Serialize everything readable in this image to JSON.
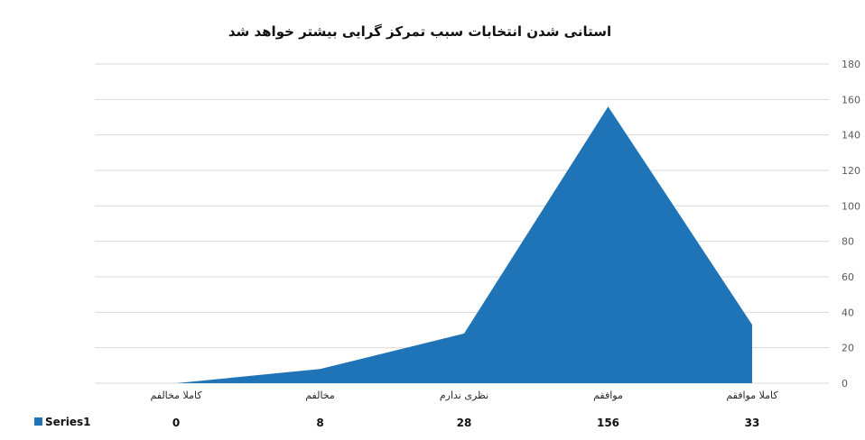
{
  "chart_data": {
    "type": "area",
    "title": "استانی شدن انتخابات سبب تمرکز گرایی بیشتر خواهد شد",
    "categories": [
      "کاملا مخالفم",
      "مخالفم",
      "نظری ندارم",
      "موافقم",
      "کاملا موافقم"
    ],
    "series": [
      {
        "name": "Series1",
        "values": [
          0,
          8,
          28,
          156,
          33
        ],
        "color": "#1f73b7"
      }
    ],
    "ylim": [
      0,
      180
    ],
    "yticks": [
      0,
      20,
      40,
      60,
      80,
      100,
      120,
      140,
      160,
      180
    ],
    "y_axis_position": "right",
    "grid": true,
    "data_table": true,
    "colors": {
      "series": "#1f73b7",
      "grid": "#d9d9d9"
    }
  }
}
